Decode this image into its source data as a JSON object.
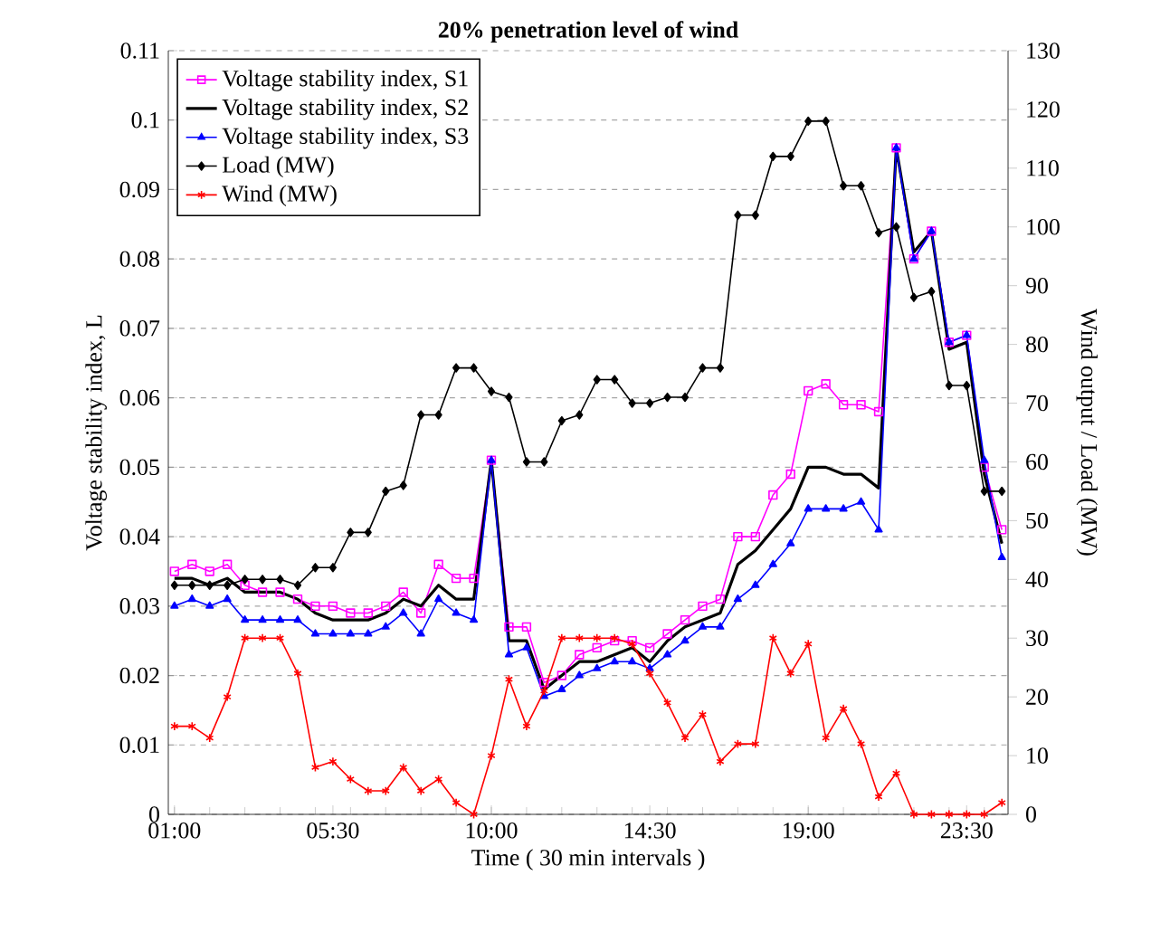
{
  "chart_data": {
    "type": "line",
    "title": "20% penetration level of wind",
    "xlabel": "Time ( 30 min intervals )",
    "ylabel": "Voltage stability index, L",
    "y2label": "Wind output / Load (MW)",
    "categories": [
      "01:00",
      null,
      null,
      null,
      null,
      null,
      null,
      null,
      null,
      "05:30",
      null,
      null,
      null,
      null,
      null,
      null,
      null,
      null,
      "10:00",
      null,
      null,
      null,
      null,
      null,
      null,
      null,
      null,
      "14:30",
      null,
      null,
      null,
      null,
      null,
      null,
      null,
      null,
      "19:00",
      null,
      null,
      null,
      null,
      null,
      null,
      null,
      null,
      "23:30",
      null,
      null
    ],
    "ylim": [
      0,
      0.11
    ],
    "yticks": [
      0,
      0.01,
      0.02,
      0.03,
      0.04,
      0.05,
      0.06,
      0.07,
      0.08,
      0.09,
      0.1,
      0.11
    ],
    "y2lim": [
      0,
      130
    ],
    "y2ticks": [
      0,
      10,
      20,
      30,
      40,
      50,
      60,
      70,
      80,
      90,
      100,
      110,
      120,
      130
    ],
    "grid": "y",
    "legend": "top left",
    "line_style": "solid",
    "series": [
      {
        "name": "Voltage stability index, S1",
        "color": "#ff00ff",
        "marker": "square",
        "values": [
          0.035,
          0.036,
          0.035,
          0.036,
          0.033,
          0.032,
          0.032,
          0.031,
          0.03,
          0.03,
          0.029,
          0.029,
          0.03,
          0.032,
          0.029,
          0.036,
          0.034,
          0.034,
          0.051,
          0.027,
          0.027,
          0.019,
          0.02,
          0.023,
          0.024,
          0.025,
          0.025,
          0.024,
          0.026,
          0.028,
          0.03,
          0.031,
          0.04,
          0.04,
          0.046,
          0.049,
          0.061,
          0.062,
          0.059,
          0.059,
          0.058,
          0.096,
          0.08,
          0.084,
          0.068,
          0.069,
          0.05,
          0.041
        ]
      },
      {
        "name": "Voltage stability index, S2",
        "color": "#000000",
        "marker": "none",
        "values": [
          0.034,
          0.034,
          0.033,
          0.034,
          0.032,
          0.032,
          0.032,
          0.031,
          0.029,
          0.028,
          0.028,
          0.028,
          0.029,
          0.031,
          0.03,
          0.033,
          0.031,
          0.031,
          0.051,
          0.025,
          0.025,
          0.018,
          0.02,
          0.022,
          0.022,
          0.023,
          0.024,
          0.022,
          0.025,
          0.027,
          0.028,
          0.029,
          0.036,
          0.038,
          0.041,
          0.044,
          0.05,
          0.05,
          0.049,
          0.049,
          0.047,
          0.096,
          0.081,
          0.084,
          0.067,
          0.068,
          0.049,
          0.039
        ]
      },
      {
        "name": "Voltage stability index, S3",
        "color": "#0000ff",
        "marker": "triangle",
        "values": [
          0.03,
          0.031,
          0.03,
          0.031,
          0.028,
          0.028,
          0.028,
          0.028,
          0.026,
          0.026,
          0.026,
          0.026,
          0.027,
          0.029,
          0.026,
          0.031,
          0.029,
          0.028,
          0.051,
          0.023,
          0.024,
          0.017,
          0.018,
          0.02,
          0.021,
          0.022,
          0.022,
          0.021,
          0.023,
          0.025,
          0.027,
          0.027,
          0.031,
          0.033,
          0.036,
          0.039,
          0.044,
          0.044,
          0.044,
          0.045,
          0.041,
          0.096,
          0.08,
          0.084,
          0.068,
          0.069,
          0.051,
          0.037
        ]
      },
      {
        "name": "Load (MW)",
        "color": "#000000",
        "marker": "diamond",
        "axis": "y2",
        "values": [
          39,
          39,
          39,
          39,
          40,
          40,
          40,
          39,
          42,
          42,
          48,
          48,
          55,
          56,
          68,
          68,
          76,
          76,
          72,
          71,
          60,
          60,
          67,
          68,
          74,
          74,
          70,
          70,
          71,
          71,
          76,
          76,
          102,
          102,
          112,
          112,
          118,
          118,
          107,
          107,
          99,
          100,
          88,
          89,
          73,
          73,
          55,
          55
        ]
      },
      {
        "name": "Wind (MW)",
        "color": "#ff0000",
        "marker": "cross",
        "axis": "y2",
        "values": [
          15,
          15,
          13,
          20,
          30,
          30,
          30,
          24,
          8,
          9,
          6,
          4,
          4,
          8,
          4,
          6,
          2,
          0,
          10,
          23,
          15,
          21,
          30,
          30,
          30,
          30,
          29,
          24,
          19,
          13,
          17,
          9,
          12,
          12,
          30,
          24,
          29,
          13,
          18,
          12,
          3,
          7,
          0,
          0,
          0,
          0,
          0,
          2
        ]
      }
    ]
  }
}
